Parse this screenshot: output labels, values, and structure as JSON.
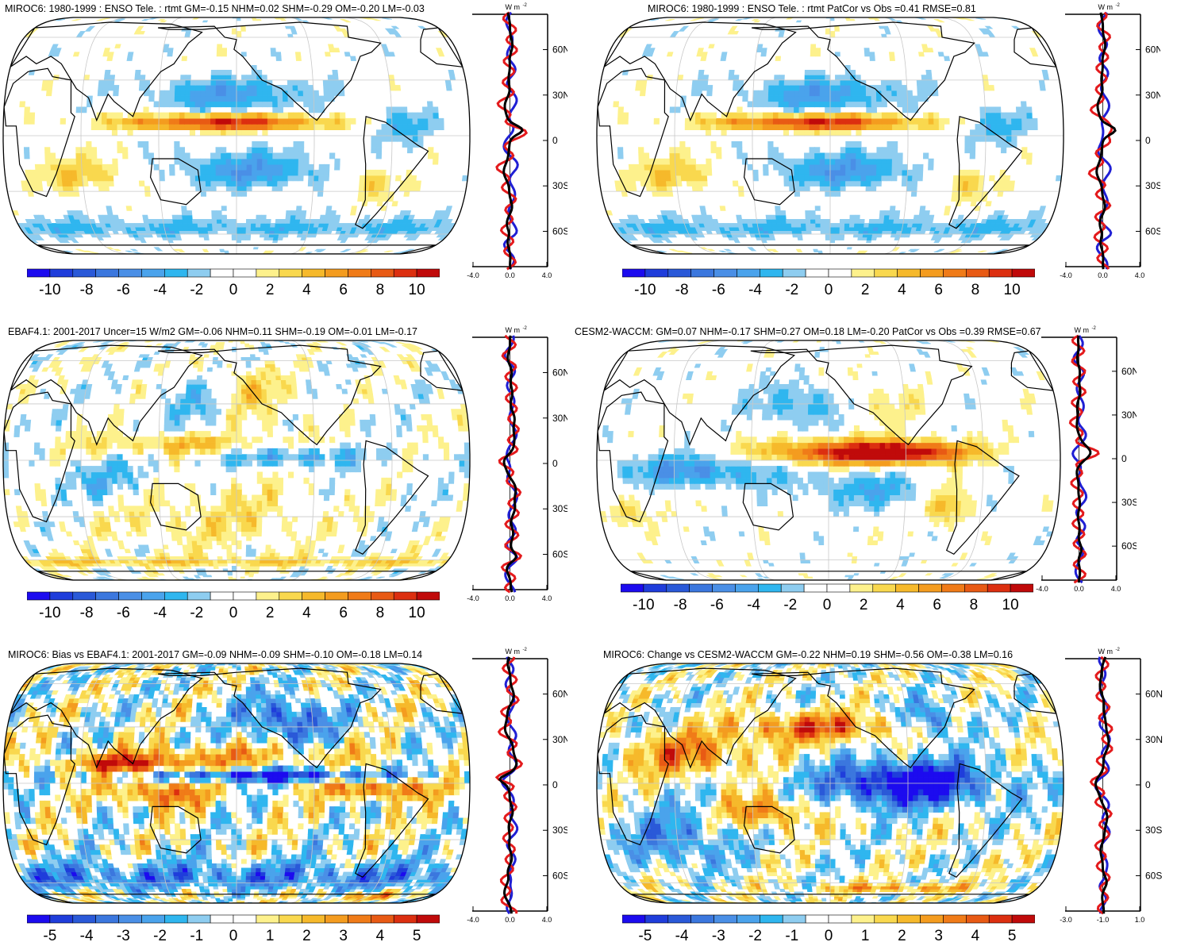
{
  "units_label": "W m",
  "units_sup": "-2",
  "colors": {
    "zero": "#ffffff",
    "neg": [
      "#1c0bef",
      "#1f3ddb",
      "#2a59d8",
      "#3b77de",
      "#4a8fe6",
      "#4aa3ec",
      "#2fb6ef",
      "#8ecdf0"
    ],
    "pos": [
      "#fdf18c",
      "#f9d84e",
      "#f6b92b",
      "#f49c1f",
      "#f07b18",
      "#e85a14",
      "#dc2f10",
      "#c00a0a"
    ],
    "model_line": "#e31a1c",
    "obs_line": "#1f1fd4",
    "diff_line": "#000000",
    "grid": "#c8c8c8"
  },
  "panels": [
    {
      "title": "MIROC6: 1980-1999 : ENSO Tele. : rtmt GM=-0.15 NHM=0.02 SHM=-0.29 OM=-0.20 LM=-0.03",
      "colorbar_ticks": [
        "-10",
        "-8",
        "-6",
        "-4",
        "-2",
        "0",
        "2",
        "4",
        "6",
        "8",
        "10"
      ],
      "lat_labels": [
        "60N",
        "30N",
        "0",
        "30S",
        "60S"
      ],
      "x_ticks": [
        "-4.0",
        "0.0",
        "4.0"
      ],
      "field": "enso_model"
    },
    {
      "title": "MIROC6: 1980-1999 : ENSO Tele. : rtmt PatCor vs Obs =0.41 RMSE=0.81",
      "colorbar_ticks": [
        "-10",
        "-8",
        "-6",
        "-4",
        "-2",
        "0",
        "2",
        "4",
        "6",
        "8",
        "10"
      ],
      "lat_labels": [
        "60N",
        "30N",
        "0",
        "30S",
        "60S"
      ],
      "x_ticks": [
        "-4.0",
        "0.0",
        "4.0"
      ],
      "field": "enso_model"
    },
    {
      "title": "EBAF4.1: 2001-2017 Uncer=15 W/m2 GM=-0.06 NHM=0.11 SHM=-0.19 OM=-0.01 LM=-0.17",
      "colorbar_ticks": [
        "-10",
        "-8",
        "-6",
        "-4",
        "-2",
        "0",
        "2",
        "4",
        "6",
        "8",
        "10"
      ],
      "lat_labels": [
        "60N",
        "30N",
        "0",
        "30S",
        "60S"
      ],
      "x_ticks": [
        "-4.0",
        "0.0",
        "4.0"
      ],
      "field": "obs"
    },
    {
      "title": "CESM2-WACCM: GM=0.07 NHM=-0.17 SHM=0.27 OM=0.18 LM=-0.20 PatCor vs Obs =0.39 RMSE=0.67",
      "colorbar_ticks": [
        "-10",
        "-8",
        "-6",
        "-4",
        "-2",
        "0",
        "2",
        "4",
        "6",
        "8",
        "10"
      ],
      "lat_labels": [
        "60N",
        "30N",
        "0",
        "30S",
        "60S"
      ],
      "x_ticks": [
        "-4.0",
        "0.0",
        "4.0"
      ],
      "field": "cesm"
    },
    {
      "title": "MIROC6: Bias vs EBAF4.1: 2001-2017 GM=-0.09 NHM=-0.09 SHM=-0.10 OM=-0.18 LM=0.14",
      "colorbar_ticks": [
        "-5",
        "-4",
        "-3",
        "-2",
        "-1",
        "0",
        "1",
        "2",
        "3",
        "4",
        "5"
      ],
      "lat_labels": [
        "60N",
        "30N",
        "0",
        "30S",
        "60S"
      ],
      "x_ticks": [
        "-4.0",
        "0.0",
        "4.0"
      ],
      "field": "bias"
    },
    {
      "title": "MIROC6: Change vs CESM2-WACCM GM=-0.22 NHM=0.19 SHM=-0.56 OM=-0.38 LM=0.16",
      "colorbar_ticks": [
        "-5",
        "-4",
        "-3",
        "-2",
        "-1",
        "0",
        "1",
        "2",
        "3",
        "4",
        "5"
      ],
      "lat_labels": [
        "60N",
        "30N",
        "0",
        "30S",
        "60S"
      ],
      "x_ticks": [
        "-3.0",
        "-1.0",
        "1.0"
      ],
      "field": "change"
    }
  ]
}
